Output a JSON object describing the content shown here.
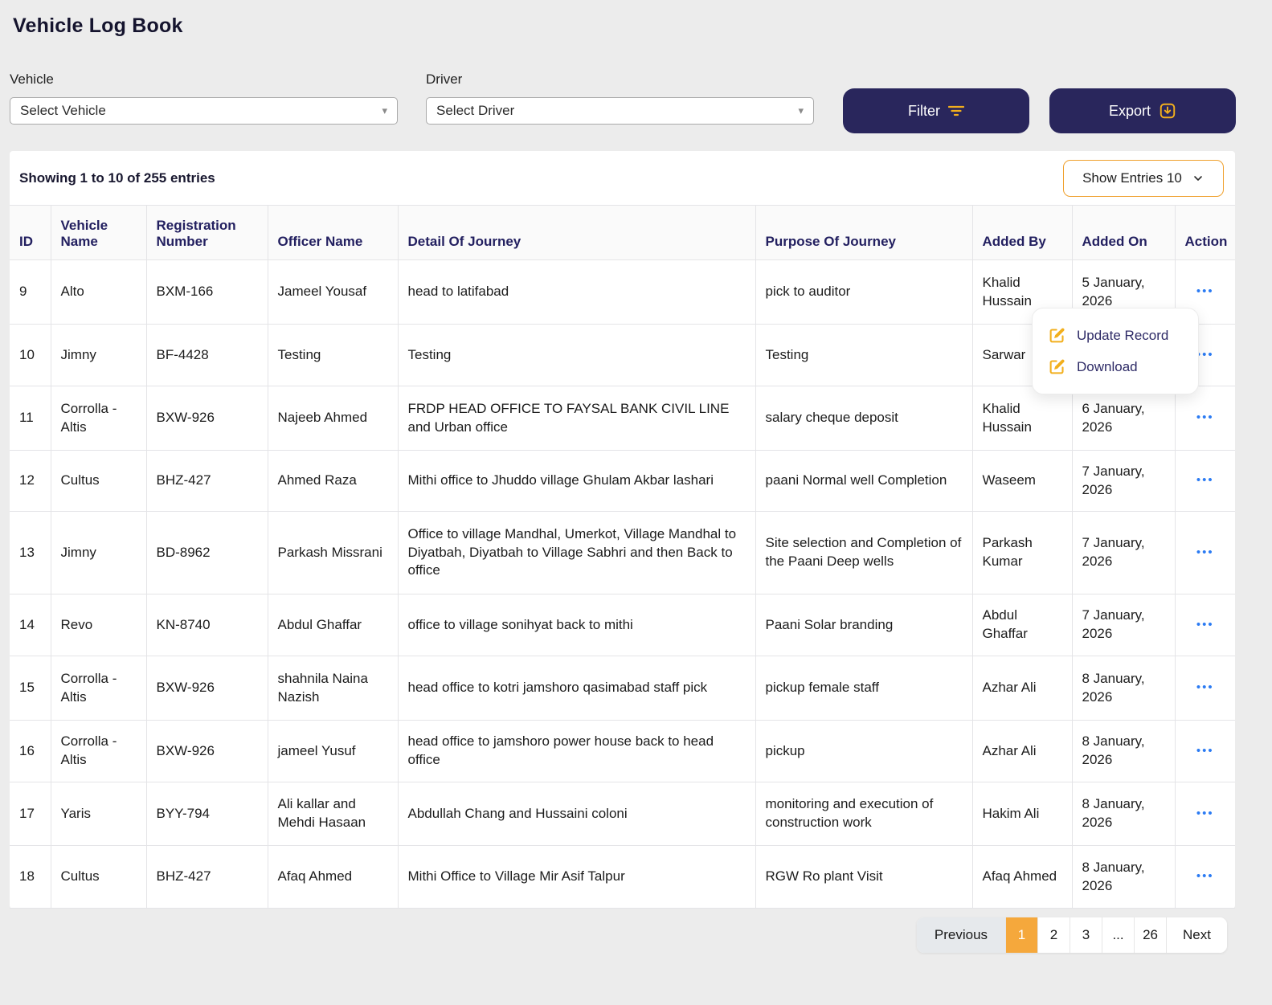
{
  "page": {
    "title": "Vehicle Log Book"
  },
  "filters": {
    "vehicle_label": "Vehicle",
    "vehicle_placeholder": "Select Vehicle",
    "driver_label": "Driver",
    "driver_placeholder": "Select Driver",
    "filter_button": "Filter",
    "export_button": "Export"
  },
  "table": {
    "summary": "Showing 1 to 10 of 255 entries",
    "show_entries": "Show Entries 10",
    "action_ellipsis": "•••",
    "columns": [
      "ID",
      "Vehicle Name",
      "Registration Number",
      "Officer Name",
      "Detail Of Journey",
      "Purpose Of Journey",
      "Added By",
      "Added On",
      "Action"
    ],
    "rows": [
      {
        "id": "9",
        "vehicle": "Alto",
        "reg": "BXM-166",
        "officer": "Jameel Yousaf",
        "detail": "head to latifabad",
        "purpose": "pick to auditor",
        "added_by": "Khalid Hussain",
        "added_on": "5 January, 2026"
      },
      {
        "id": "10",
        "vehicle": "Jimny",
        "reg": "BF-4428",
        "officer": "Testing",
        "detail": "Testing",
        "purpose": "Testing",
        "added_by": "Sarwar",
        "added_on": ""
      },
      {
        "id": "11",
        "vehicle": "Corrolla - Altis",
        "reg": "BXW-926",
        "officer": "Najeeb Ahmed",
        "detail": "FRDP HEAD OFFICE TO FAYSAL BANK CIVIL LINE and Urban office",
        "purpose": "salary cheque deposit",
        "added_by": "Khalid Hussain",
        "added_on": "6 January, 2026"
      },
      {
        "id": "12",
        "vehicle": "Cultus",
        "reg": "BHZ-427",
        "officer": "Ahmed Raza",
        "detail": "Mithi office to Jhuddo village Ghulam Akbar lashari",
        "purpose": "paani Normal well Completion",
        "added_by": "Waseem",
        "added_on": "7 January, 2026"
      },
      {
        "id": "13",
        "vehicle": "Jimny",
        "reg": "BD-8962",
        "officer": "Parkash Missrani",
        "detail": "Office to village Mandhal, Umerkot, Village Mandhal to Diyatbah, Diyatbah to Village Sabhri and then Back to office",
        "purpose": "Site selection and Completion of the Paani Deep wells",
        "added_by": "Parkash Kumar",
        "added_on": "7 January, 2026"
      },
      {
        "id": "14",
        "vehicle": "Revo",
        "reg": "KN-8740",
        "officer": "Abdul Ghaffar",
        "detail": "office to village sonihyat back to mithi",
        "purpose": "Paani Solar branding",
        "added_by": "Abdul Ghaffar",
        "added_on": "7 January, 2026"
      },
      {
        "id": "15",
        "vehicle": "Corrolla - Altis",
        "reg": "BXW-926",
        "officer": "shahnila Naina Nazish",
        "detail": "head office to kotri jamshoro qasimabad staff pick",
        "purpose": "pickup female staff",
        "added_by": "Azhar Ali",
        "added_on": "8 January, 2026"
      },
      {
        "id": "16",
        "vehicle": "Corrolla - Altis",
        "reg": "BXW-926",
        "officer": "jameel Yusuf",
        "detail": "head office to jamshoro power house back to head office",
        "purpose": "pickup",
        "added_by": "Azhar Ali",
        "added_on": "8 January, 2026"
      },
      {
        "id": "17",
        "vehicle": "Yaris",
        "reg": "BYY-794",
        "officer": "Ali kallar and Mehdi Hasaan",
        "detail": "Abdullah Chang and Hussaini coloni",
        "purpose": "monitoring and execution of construction work",
        "added_by": "Hakim Ali",
        "added_on": "8 January, 2026"
      },
      {
        "id": "18",
        "vehicle": "Cultus",
        "reg": "BHZ-427",
        "officer": "Afaq Ahmed",
        "detail": "Mithi Office to Village Mir Asif Talpur",
        "purpose": "RGW Ro plant Visit",
        "added_by": "Afaq Ahmed",
        "added_on": "8 January, 2026"
      }
    ]
  },
  "action_menu": {
    "items": [
      {
        "label": "Update Record"
      },
      {
        "label": "Download"
      }
    ]
  },
  "pagination": {
    "previous": "Previous",
    "pages": [
      "1",
      "2",
      "3",
      "...",
      "26"
    ],
    "active": "1",
    "next": "Next"
  },
  "colors": {
    "navy_button": "#29265c",
    "gold_accent": "#f2af1d",
    "header_text": "#232060",
    "active_page": "#f5a83c",
    "action_dots": "#2b7bf3",
    "entries_border": "#f0a12e",
    "page_background": "#ececec"
  }
}
